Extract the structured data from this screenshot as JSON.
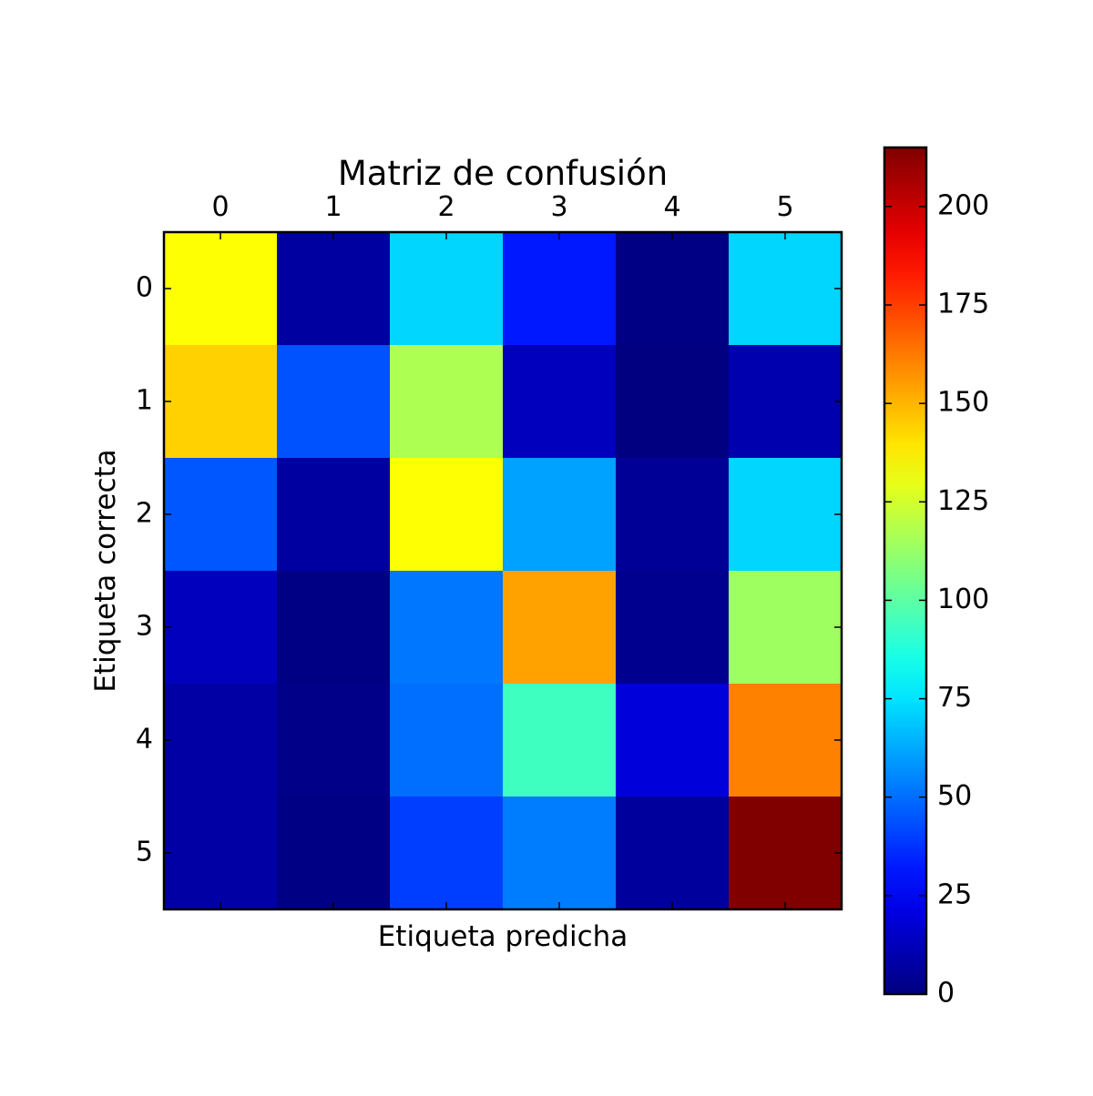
{
  "chart_data": {
    "type": "heatmap",
    "title": "Matriz de confusión",
    "xlabel": "Etiqueta predicha",
    "ylabel": "Etiqueta correcta",
    "x_categories": [
      "0",
      "1",
      "2",
      "3",
      "4",
      "5"
    ],
    "y_categories": [
      "0",
      "1",
      "2",
      "3",
      "4",
      "5"
    ],
    "values": [
      [
        134,
        7,
        72,
        32,
        1,
        72
      ],
      [
        144,
        44,
        117,
        13,
        0,
        10
      ],
      [
        45,
        7,
        134,
        61,
        5,
        72
      ],
      [
        13,
        1,
        52,
        154,
        3,
        114
      ],
      [
        8,
        2,
        50,
        94,
        19,
        161
      ],
      [
        8,
        1,
        40,
        53,
        6,
        215
      ]
    ],
    "colormap": "jet",
    "vmin": 0,
    "vmax": 215,
    "colorbar": {
      "ticks": [
        0,
        25,
        50,
        75,
        100,
        125,
        150,
        175,
        200
      ],
      "tick_labels": [
        "0",
        "25",
        "50",
        "75",
        "100",
        "125",
        "150",
        "175",
        "200"
      ],
      "placement": "right"
    },
    "grid": false
  }
}
